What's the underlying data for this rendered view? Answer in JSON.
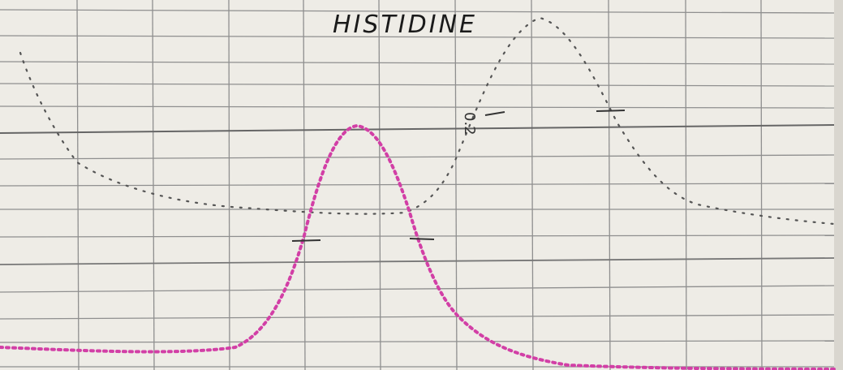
{
  "title": "HISTIDINE",
  "annotation": "0.2"
}
